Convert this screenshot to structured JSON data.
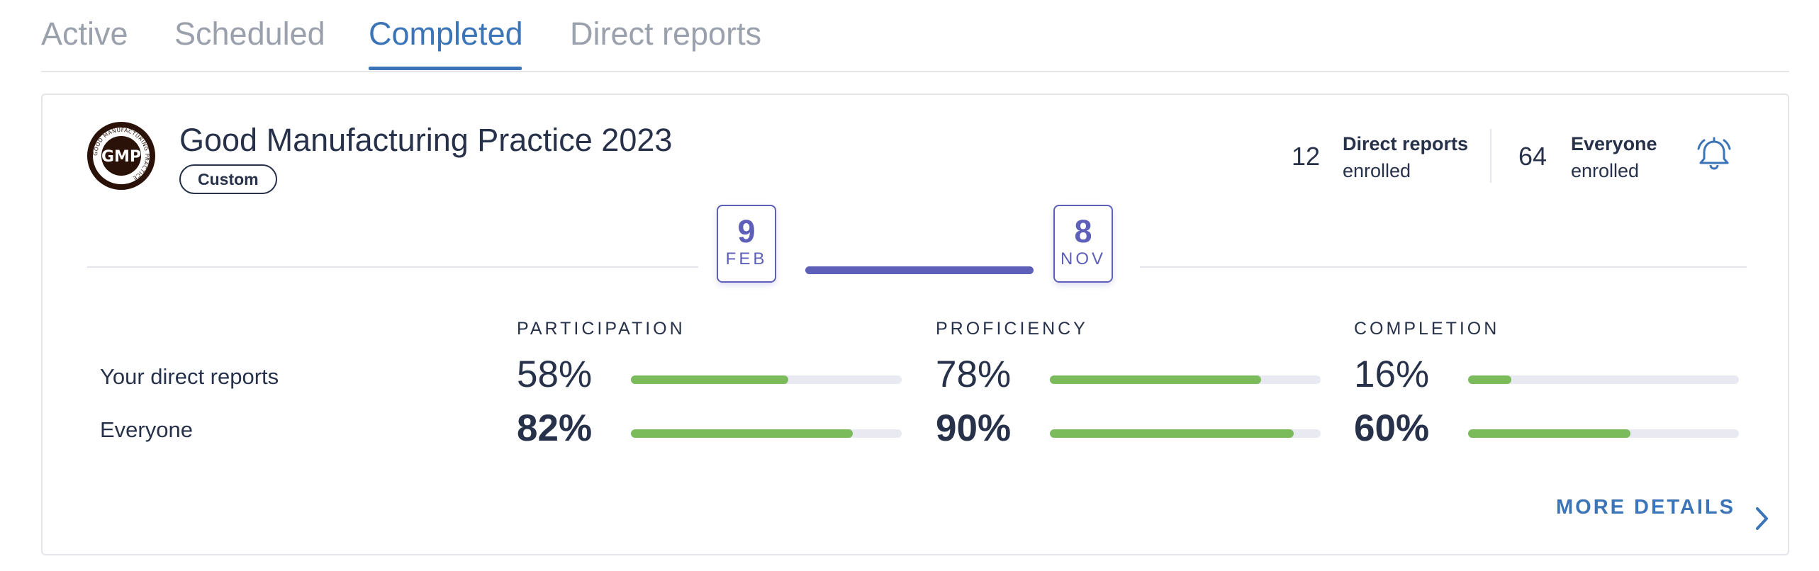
{
  "tabs": [
    {
      "label": "Active"
    },
    {
      "label": "Scheduled"
    },
    {
      "label": "Completed"
    },
    {
      "label": "Direct reports"
    }
  ],
  "active_tab": "Completed",
  "card": {
    "logo_text": "GMP",
    "logo_ring_text": "GOOD MANUFACTURING PRACTICE",
    "title": "Good Manufacturing Practice 2023",
    "badge": "Custom",
    "enrollment": {
      "direct_reports": {
        "count": "12",
        "label": "Direct reports",
        "sub": "enrolled"
      },
      "everyone": {
        "count": "64",
        "label": "Everyone",
        "sub": "enrolled"
      }
    },
    "bell_icon": "bell-icon",
    "start_date": {
      "day": "9",
      "month": "FEB"
    },
    "end_date": {
      "day": "8",
      "month": "NOV"
    },
    "metrics_headings": {
      "participation": "PARTICIPATION",
      "proficiency": "PROFICIENCY",
      "completion": "COMPLETION"
    },
    "rows": {
      "direct_reports": {
        "label": "Your direct reports",
        "participation": {
          "text": "58%",
          "value": 0.58
        },
        "proficiency": {
          "text": "78%",
          "value": 0.78
        },
        "completion": {
          "text": "16%",
          "value": 0.16
        }
      },
      "everyone": {
        "label": "Everyone",
        "participation": {
          "text": "82%",
          "value": 0.82
        },
        "proficiency": {
          "text": "90%",
          "value": 0.9
        },
        "completion": {
          "text": "60%",
          "value": 0.6
        }
      }
    },
    "more_details": "MORE DETAILS",
    "colors": {
      "accent": "#3c74b8",
      "timeline": "#5d5fb8",
      "progress_fill": "#7cbb5c",
      "progress_track": "#e8e9f1",
      "text": "#27324a",
      "muted_tab": "#9aa1ad"
    }
  }
}
